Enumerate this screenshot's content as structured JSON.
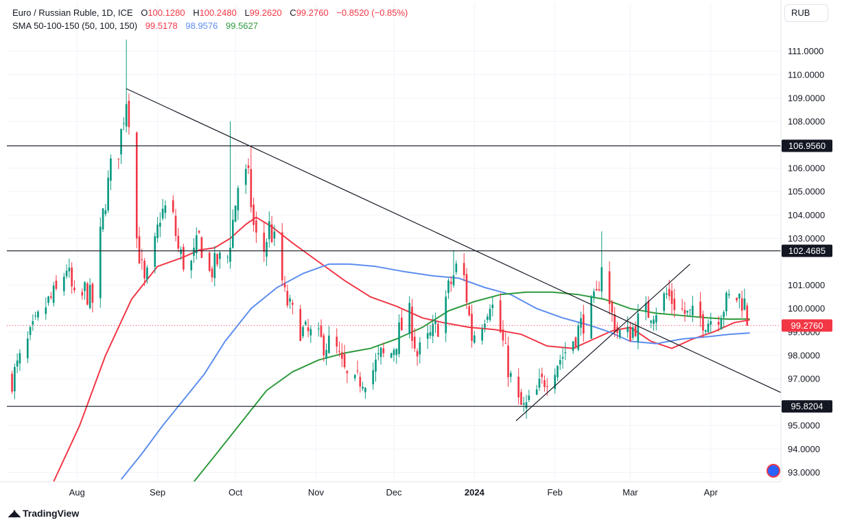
{
  "header": {
    "symbol": "Euro / Russian Ruble, 1D, ICE",
    "ohlc": {
      "o_label": "O",
      "o_value": "100.1280",
      "h_label": "H",
      "h_value": "100.2480",
      "l_label": "L",
      "l_value": "99.2620",
      "c_label": "C",
      "c_value": "99.2760",
      "change": "−0.8520 (−0.85%)"
    },
    "indicator": {
      "name": "SMA 50-100-150 (50, 100, 150)",
      "sma50": "99.5178",
      "sma100": "98.9576",
      "sma150": "99.5627"
    }
  },
  "unit": "RUB",
  "brand": "TradingView",
  "colors": {
    "up": "#089981",
    "down": "#f23645",
    "sma50": "#f23645",
    "sma100": "#5b8def",
    "sma150": "#2e9a3c",
    "grid": "#f0f3fa",
    "line": "#131722"
  },
  "chart_data": {
    "type": "candlestick",
    "title": "Euro / Russian Ruble, 1D, ICE",
    "ylim": [
      92.6,
      111.9
    ],
    "y_ticks": [
      "111.0000",
      "110.0000",
      "109.0000",
      "108.0000",
      "106.0000",
      "105.0000",
      "104.0000",
      "103.0000",
      "101.0000",
      "100.0000",
      "99.0000",
      "98.0000",
      "97.0000",
      "95.0000",
      "94.0000",
      "93.0000"
    ],
    "x_ticks": [
      {
        "label": "Aug",
        "day": 19
      },
      {
        "label": "Sep",
        "day": 50
      },
      {
        "label": "Oct",
        "day": 80
      },
      {
        "label": "Nov",
        "day": 111
      },
      {
        "label": "Dec",
        "day": 141
      },
      {
        "label": "2024",
        "day": 172
      },
      {
        "label": "Feb",
        "day": 203
      },
      {
        "label": "Mar",
        "day": 232
      },
      {
        "label": "Apr",
        "day": 263
      }
    ],
    "x_day_range": [
      -8,
      290
    ],
    "last_day": 278,
    "anchors": [
      [
        -6,
        97.0
      ],
      [
        0,
        98.5
      ],
      [
        6,
        100.0
      ],
      [
        12,
        100.8
      ],
      [
        15,
        101.8
      ],
      [
        19,
        99.8
      ],
      [
        22,
        100.8
      ],
      [
        25,
        100.3
      ],
      [
        29,
        104.0
      ],
      [
        32,
        106.0
      ],
      [
        35,
        106.8
      ],
      [
        38,
        109.0
      ],
      [
        40,
        107.5
      ],
      [
        42,
        103.0
      ],
      [
        45,
        101.0
      ],
      [
        48,
        102.0
      ],
      [
        51,
        104.0
      ],
      [
        55,
        104.5
      ],
      [
        58,
        102.5
      ],
      [
        62,
        101.5
      ],
      [
        66,
        103.0
      ],
      [
        70,
        101.5
      ],
      [
        73,
        102.0
      ],
      [
        77,
        102.2
      ],
      [
        80,
        104.5
      ],
      [
        82,
        106.0
      ],
      [
        85,
        105.5
      ],
      [
        87,
        103.5
      ],
      [
        90,
        102.0
      ],
      [
        93,
        103.5
      ],
      [
        96,
        102.5
      ],
      [
        99,
        100.5
      ],
      [
        103,
        99.5
      ],
      [
        106,
        99.0
      ],
      [
        110,
        98.8
      ],
      [
        114,
        98.5
      ],
      [
        118,
        98.5
      ],
      [
        121,
        97.5
      ],
      [
        125,
        96.5
      ],
      [
        128,
        97.0
      ],
      [
        132,
        97.2
      ],
      [
        136,
        98.0
      ],
      [
        139,
        97.8
      ],
      [
        143,
        99.0
      ],
      [
        147,
        99.7
      ],
      [
        150,
        98.0
      ],
      [
        154,
        98.6
      ],
      [
        158,
        99.3
      ],
      [
        162,
        100.8
      ],
      [
        165,
        101.7
      ],
      [
        168,
        101.3
      ],
      [
        171,
        98.8
      ],
      [
        175,
        99.5
      ],
      [
        178,
        100.4
      ],
      [
        182,
        99.0
      ],
      [
        185,
        97.5
      ],
      [
        188,
        96.0
      ],
      [
        191,
        95.7
      ],
      [
        194,
        96.0
      ],
      [
        198,
        96.8
      ],
      [
        202,
        97.5
      ],
      [
        206,
        98.0
      ],
      [
        210,
        98.7
      ],
      [
        213,
        99.3
      ],
      [
        216,
        99.8
      ],
      [
        219,
        100.4
      ],
      [
        221,
        102.0
      ],
      [
        223,
        100.4
      ],
      [
        227,
        99.0
      ],
      [
        230,
        98.7
      ],
      [
        234,
        99.3
      ],
      [
        238,
        99.8
      ],
      [
        242,
        100.0
      ],
      [
        246,
        100.6
      ],
      [
        250,
        100.1
      ],
      [
        254,
        99.7
      ],
      [
        258,
        99.6
      ],
      [
        262,
        99.5
      ],
      [
        266,
        99.8
      ],
      [
        270,
        100.4
      ],
      [
        274,
        100.5
      ],
      [
        277,
        100.1
      ],
      [
        278,
        99.28
      ]
    ],
    "spikes": [
      {
        "day": 38,
        "high": 111.5
      },
      {
        "day": 78,
        "high": 108.0
      },
      {
        "day": 86,
        "high": 106.9
      },
      {
        "day": 164,
        "high": 102.5
      },
      {
        "day": 221,
        "high": 103.3
      }
    ],
    "sma": [
      {
        "name": "SMA 50",
        "value": "99.5178",
        "color": "#f23645",
        "points": [
          [
            10,
            92.6
          ],
          [
            20,
            95.0
          ],
          [
            30,
            98.0
          ],
          [
            40,
            100.4
          ],
          [
            50,
            101.8
          ],
          [
            60,
            102.2
          ],
          [
            66,
            102.5
          ],
          [
            72,
            102.6
          ],
          [
            78,
            103.0
          ],
          [
            84,
            103.6
          ],
          [
            88,
            103.9
          ],
          [
            94,
            103.5
          ],
          [
            102,
            102.8
          ],
          [
            112,
            102.0
          ],
          [
            122,
            101.2
          ],
          [
            132,
            100.5
          ],
          [
            142,
            100.1
          ],
          [
            152,
            99.6
          ],
          [
            160,
            99.4
          ],
          [
            170,
            99.2
          ],
          [
            180,
            99.1
          ],
          [
            190,
            98.9
          ],
          [
            200,
            98.4
          ],
          [
            210,
            98.3
          ],
          [
            218,
            98.7
          ],
          [
            225,
            99.05
          ],
          [
            232,
            99.2
          ],
          [
            240,
            98.6
          ],
          [
            248,
            98.3
          ],
          [
            256,
            98.7
          ],
          [
            264,
            99.0
          ],
          [
            272,
            99.4
          ],
          [
            278,
            99.52
          ]
        ]
      },
      {
        "name": "SMA 100",
        "value": "98.9576",
        "color": "#5b8def",
        "points": [
          [
            36,
            92.7
          ],
          [
            44,
            93.8
          ],
          [
            52,
            95.0
          ],
          [
            60,
            96.1
          ],
          [
            68,
            97.2
          ],
          [
            76,
            98.6
          ],
          [
            86,
            100.0
          ],
          [
            96,
            100.9
          ],
          [
            106,
            101.5
          ],
          [
            116,
            101.9
          ],
          [
            124,
            101.9
          ],
          [
            134,
            101.8
          ],
          [
            144,
            101.6
          ],
          [
            156,
            101.4
          ],
          [
            166,
            101.3
          ],
          [
            176,
            100.9
          ],
          [
            186,
            100.6
          ],
          [
            196,
            100.0
          ],
          [
            206,
            99.6
          ],
          [
            216,
            99.3
          ],
          [
            224,
            99.0
          ],
          [
            232,
            98.6
          ],
          [
            242,
            98.5
          ],
          [
            252,
            98.7
          ],
          [
            262,
            98.8
          ],
          [
            270,
            98.9
          ],
          [
            278,
            98.96
          ]
        ]
      },
      {
        "name": "SMA 150",
        "value": "99.5627",
        "color": "#2e9a3c",
        "points": [
          [
            64,
            92.6
          ],
          [
            72,
            93.7
          ],
          [
            82,
            95.1
          ],
          [
            92,
            96.5
          ],
          [
            102,
            97.3
          ],
          [
            112,
            97.8
          ],
          [
            122,
            98.1
          ],
          [
            132,
            98.3
          ],
          [
            142,
            98.7
          ],
          [
            152,
            99.2
          ],
          [
            162,
            99.9
          ],
          [
            172,
            100.3
          ],
          [
            182,
            100.6
          ],
          [
            192,
            100.7
          ],
          [
            202,
            100.7
          ],
          [
            212,
            100.6
          ],
          [
            222,
            100.4
          ],
          [
            232,
            100.0
          ],
          [
            242,
            99.8
          ],
          [
            252,
            99.7
          ],
          [
            262,
            99.6
          ],
          [
            270,
            99.55
          ],
          [
            278,
            99.56
          ]
        ]
      }
    ],
    "horizontal_lines": [
      {
        "price": 106.956,
        "label": "106.9560"
      },
      {
        "price": 102.4685,
        "label": "102.4685"
      },
      {
        "price": 95.8204,
        "label": "95.8204"
      }
    ],
    "trend_lines": [
      {
        "from": [
          38,
          109.4
        ],
        "to": [
          298,
          96.0
        ]
      },
      {
        "from": [
          188,
          95.2
        ],
        "to": [
          255,
          101.9
        ]
      }
    ],
    "last_price": {
      "price": 99.276,
      "label": "99.2760"
    }
  }
}
